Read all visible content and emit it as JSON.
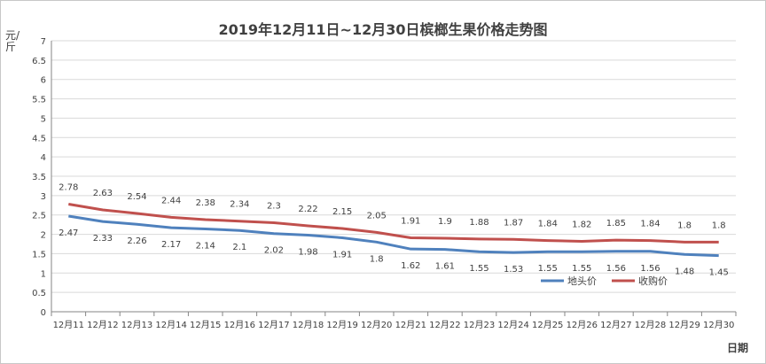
{
  "chart_data": {
    "type": "line",
    "title": "2019年12月11日~12月30日槟榔生果价格走势图",
    "ylabel": "元/斤",
    "xlabel": "日期",
    "ylim": [
      0,
      7
    ],
    "yticks": [
      "0",
      "0.5",
      "1",
      "1.5",
      "2",
      "2.5",
      "3",
      "3.5",
      "4",
      "4.5",
      "5",
      "5.5",
      "6",
      "6.5",
      "7"
    ],
    "categories": [
      "12月11",
      "12月12",
      "12月13",
      "12月14",
      "12月15",
      "12月16",
      "12月17",
      "12月18",
      "12月19",
      "12月20",
      "12月21",
      "12月22",
      "12月23",
      "12月24",
      "12月25",
      "12月26",
      "12月27",
      "12月28",
      "12月29",
      "12月30"
    ],
    "legend_position": "bottom-right",
    "series": [
      {
        "name": "地头价",
        "color": "#4f81bd",
        "values": [
          2.47,
          2.33,
          2.26,
          2.17,
          2.14,
          2.1,
          2.02,
          1.98,
          1.91,
          1.8,
          1.62,
          1.61,
          1.55,
          1.53,
          1.55,
          1.55,
          1.56,
          1.56,
          1.48,
          1.45
        ],
        "labels": [
          "2.47",
          "2.33",
          "2.26",
          "2.17",
          "2.14",
          "2.1",
          "2.02",
          "1.98",
          "1.91",
          "1.8",
          "1.62",
          "1.61",
          "1.55",
          "1.53",
          "1.55",
          "1.55",
          "1.56",
          "1.56",
          "1.48",
          "1.45"
        ]
      },
      {
        "name": "收购价",
        "color": "#c0504d",
        "values": [
          2.78,
          2.63,
          2.54,
          2.44,
          2.38,
          2.34,
          2.3,
          2.22,
          2.15,
          2.05,
          1.91,
          1.9,
          1.88,
          1.87,
          1.84,
          1.82,
          1.85,
          1.84,
          1.8,
          1.8
        ],
        "labels": [
          "2.78",
          "2.63",
          "2.54",
          "2.44",
          "2.38",
          "2.34",
          "2.3",
          "2.22",
          "2.15",
          "2.05",
          "1.91",
          "1.9",
          "1.88",
          "1.87",
          "1.84",
          "1.82",
          "1.85",
          "1.84",
          "1.8",
          "1.8"
        ]
      }
    ]
  }
}
